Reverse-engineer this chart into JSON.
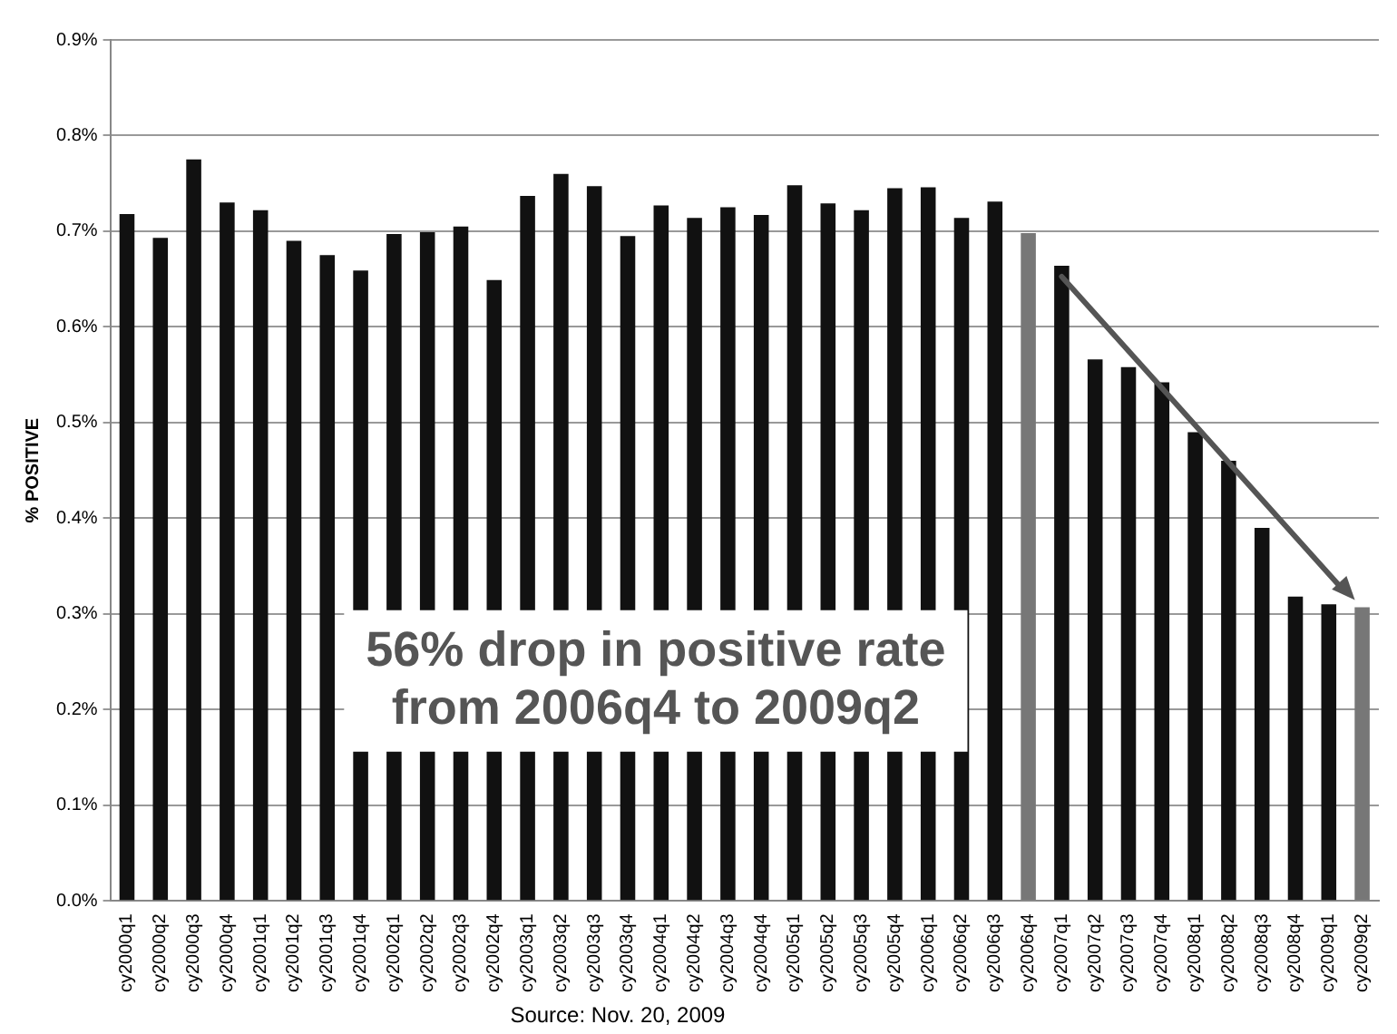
{
  "chart_data": {
    "type": "bar",
    "ylabel": "% POSITIVE",
    "categories": [
      "cy2000q1",
      "cy2000q2",
      "cy2000q3",
      "cy2000q4",
      "cy2001q1",
      "cy2001q2",
      "cy2001q3",
      "cy2001q4",
      "cy2002q1",
      "cy2002q2",
      "cy2002q3",
      "cy2002q4",
      "cy2003q1",
      "cy2003q2",
      "cy2003q3",
      "cy2003q4",
      "cy2004q1",
      "cy2004q2",
      "cy2004q3",
      "cy2004q4",
      "cy2005q1",
      "cy2005q2",
      "cy2005q3",
      "cy2005q4",
      "cy2006q1",
      "cy2006q2",
      "cy2006q3",
      "cy2006q4",
      "cy2007q1",
      "cy2007q2",
      "cy2007q3",
      "cy2007q4",
      "cy2008q1",
      "cy2008q2",
      "cy2008q3",
      "cy2008q4",
      "cy2009q1",
      "cy2009q2"
    ],
    "values": [
      0.718,
      0.693,
      0.775,
      0.73,
      0.722,
      0.69,
      0.675,
      0.659,
      0.697,
      0.699,
      0.705,
      0.649,
      0.737,
      0.76,
      0.747,
      0.695,
      0.727,
      0.714,
      0.725,
      0.717,
      0.748,
      0.729,
      0.722,
      0.745,
      0.746,
      0.714,
      0.731,
      0.698,
      0.664,
      0.566,
      0.558,
      0.542,
      0.49,
      0.46,
      0.39,
      0.318,
      0.31,
      0.307
    ],
    "colors": [
      "#111111",
      "#111111",
      "#111111",
      "#111111",
      "#111111",
      "#111111",
      "#111111",
      "#111111",
      "#111111",
      "#111111",
      "#111111",
      "#111111",
      "#111111",
      "#111111",
      "#111111",
      "#111111",
      "#111111",
      "#111111",
      "#111111",
      "#111111",
      "#111111",
      "#111111",
      "#111111",
      "#111111",
      "#111111",
      "#111111",
      "#111111",
      "#777777",
      "#111111",
      "#111111",
      "#111111",
      "#111111",
      "#111111",
      "#111111",
      "#111111",
      "#111111",
      "#111111",
      "#777777"
    ],
    "ylim": [
      0,
      0.9
    ],
    "yticks": [
      {
        "value": 0,
        "label": "0.0%"
      },
      {
        "value": 0.1,
        "label": "0.1%"
      },
      {
        "value": 0.2,
        "label": "0.2%"
      },
      {
        "value": 0.3,
        "label": "0.3%"
      },
      {
        "value": 0.4,
        "label": "0.4%"
      },
      {
        "value": 0.5,
        "label": "0.5%"
      },
      {
        "value": 0.6,
        "label": "0.6%"
      },
      {
        "value": 0.7,
        "label": "0.7%"
      },
      {
        "value": 0.8,
        "label": "0.8%"
      },
      {
        "value": 0.9,
        "label": "0.9%"
      }
    ],
    "grid": "y",
    "legend": false,
    "annotations": [
      "56% drop in positive rate\nfrom 2006q4 to 2009q2",
      "Source: Nov. 20, 2009"
    ]
  }
}
